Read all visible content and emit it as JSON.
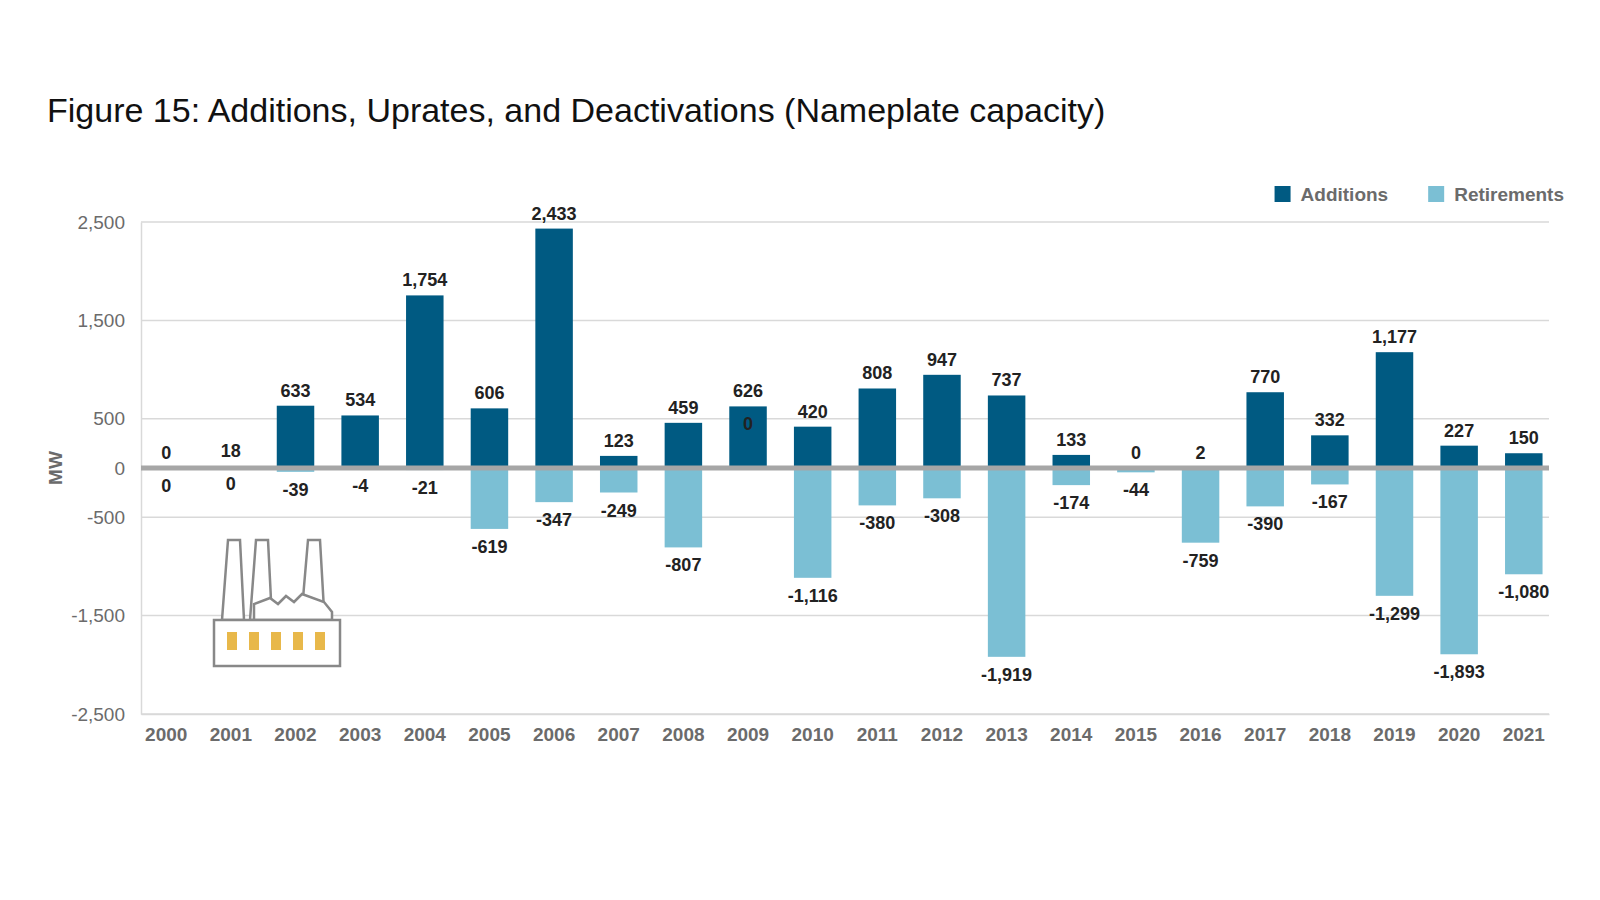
{
  "chart_data": {
    "type": "bar",
    "title": "Figure 15: Additions, Uprates, and Deactivations (Nameplate capacity)",
    "y_label": "MW",
    "categories": [
      "2000",
      "2001",
      "2002",
      "2003",
      "2004",
      "2005",
      "2006",
      "2007",
      "2008",
      "2009",
      "2010",
      "2011",
      "2012",
      "2013",
      "2014",
      "2015",
      "2016",
      "2017",
      "2018",
      "2019",
      "2020",
      "2021"
    ],
    "series": [
      {
        "name": "Additions",
        "color": "#005a82",
        "values": [
          0,
          18,
          633,
          534,
          1754,
          606,
          2433,
          123,
          459,
          626,
          420,
          808,
          947,
          737,
          133,
          0,
          2,
          770,
          332,
          1177,
          227,
          150
        ],
        "value_labels": [
          "0",
          "18",
          "633",
          "534",
          "1,754",
          "606",
          "2,433",
          "123",
          "459",
          "626",
          "420",
          "808",
          "947",
          "737",
          "133",
          "0",
          "2",
          "770",
          "332",
          "1,177",
          "227",
          "150"
        ]
      },
      {
        "name": "Retirements",
        "color": "#7bbfd4",
        "values": [
          0,
          0,
          -39,
          -4,
          -21,
          -619,
          -347,
          -249,
          -807,
          0,
          -1116,
          -380,
          -308,
          -1919,
          -174,
          -44,
          -759,
          -390,
          -167,
          -1299,
          -1893,
          -1080
        ],
        "value_labels": [
          "0",
          "0",
          "-39",
          "-4",
          "-21",
          "-619",
          "-347",
          "-249",
          "-807",
          "0",
          "-1,116",
          "-380",
          "-308",
          "-1,919",
          "-174",
          "-44",
          "-759",
          "-390",
          "-167",
          "-1,299",
          "-1,893",
          "-1,080"
        ]
      }
    ],
    "ylim": [
      -2500,
      2500
    ],
    "yticks": [
      {
        "value": -2500,
        "label": "-2,500"
      },
      {
        "value": -1500,
        "label": "-1,500"
      },
      -500,
      0,
      500,
      {
        "value": 1500,
        "label": "1,500"
      },
      {
        "value": 2500,
        "label": "2,500"
      }
    ],
    "stacked": true,
    "grid": true,
    "legend": "top-right",
    "data_labels": true
  }
}
